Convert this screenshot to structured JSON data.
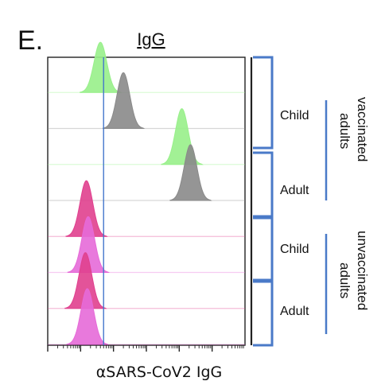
{
  "panel_letter": "E.",
  "colors": {
    "vaccinated_child": "#98f08a",
    "vaccinated_adult": "#8a8a8a",
    "unvaccinated_child": "#e0408e",
    "unvaccinated_adult": "#e66ad8",
    "reference_line": "#4477cc",
    "bracket": "#4a7ac8"
  },
  "chart_data": {
    "type": "histogram-offset",
    "title": "IgG",
    "xlabel": "αSARS-CoV2 IgG",
    "x_scale": "log",
    "xlim": [
      0.1,
      100000
    ],
    "grid": false,
    "reference_line_x": 5,
    "histograms": [
      {
        "group": "vaccinated adults",
        "row": "Child",
        "color_key": "vaccinated_child",
        "peak_x": 4,
        "peak_height": 0.9
      },
      {
        "group": "vaccinated adults",
        "row": "Child",
        "color_key": "vaccinated_adult",
        "peak_x": 20,
        "peak_height": 1.0
      },
      {
        "group": "vaccinated adults",
        "row": "Adult",
        "color_key": "vaccinated_child",
        "peak_x": 1200,
        "peak_height": 1.0
      },
      {
        "group": "vaccinated adults",
        "row": "Adult",
        "color_key": "vaccinated_adult",
        "peak_x": 2200,
        "peak_height": 1.0
      },
      {
        "group": "unvaccinated adults",
        "row": "Child",
        "color_key": "unvaccinated_child",
        "peak_x": 1.5,
        "peak_height": 1.0
      },
      {
        "group": "unvaccinated adults",
        "row": "Child",
        "color_key": "unvaccinated_adult",
        "peak_x": 1.7,
        "peak_height": 1.0
      },
      {
        "group": "unvaccinated adults",
        "row": "Adult",
        "color_key": "unvaccinated_child",
        "peak_x": 1.4,
        "peak_height": 1.0
      },
      {
        "group": "unvaccinated adults",
        "row": "Adult",
        "color_key": "unvaccinated_adult",
        "peak_x": 1.6,
        "peak_height": 1.0
      }
    ],
    "row_labels": [
      "Child",
      "Adult",
      "Child",
      "Adult"
    ],
    "group_labels": [
      {
        "lines": [
          "vaccinated",
          "adults"
        ]
      },
      {
        "lines": [
          "unvaccinated",
          "adults"
        ]
      }
    ]
  }
}
